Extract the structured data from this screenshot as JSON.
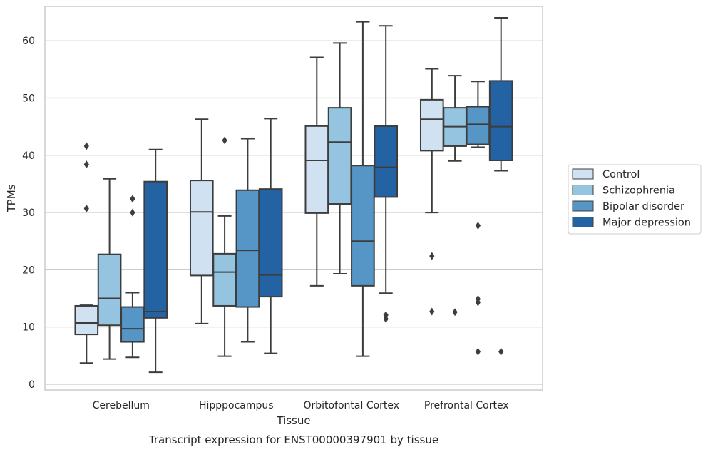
{
  "chart_data": {
    "type": "box",
    "xlabel": "Tissue",
    "ylabel": "TPMs",
    "caption": "Transcript expression for ENST00000397901 by tissue",
    "ylim": [
      -1,
      66
    ],
    "yticks": [
      0,
      10,
      20,
      30,
      40,
      50,
      60
    ],
    "grid": true,
    "legend_position": "right",
    "categories": [
      "Cerebellum",
      "Hipppocampus",
      "Orbitofontal Cortex",
      "Prefrontal Cortex"
    ],
    "series": [
      {
        "name": "Control",
        "color": "#d0e1f2",
        "boxes": [
          {
            "whislo": 3.7,
            "q1": 8.7,
            "med": 10.7,
            "q3": 13.7,
            "whishi": 13.8,
            "fliers": [
              30.7,
              38.4,
              41.6
            ]
          },
          {
            "whislo": 10.6,
            "q1": 19.0,
            "med": 30.1,
            "q3": 35.6,
            "whishi": 46.3,
            "fliers": []
          },
          {
            "whislo": 17.2,
            "q1": 29.9,
            "med": 39.1,
            "q3": 45.1,
            "whishi": 57.1,
            "fliers": []
          },
          {
            "whislo": 30.0,
            "q1": 40.8,
            "med": 46.3,
            "q3": 49.7,
            "whishi": 55.1,
            "fliers": [
              12.7,
              22.4
            ]
          }
        ]
      },
      {
        "name": "Schizophrenia",
        "color": "#94c4df",
        "boxes": [
          {
            "whislo": 4.4,
            "q1": 10.3,
            "med": 15.0,
            "q3": 22.7,
            "whishi": 35.9,
            "fliers": []
          },
          {
            "whislo": 4.9,
            "q1": 13.7,
            "med": 19.6,
            "q3": 22.8,
            "whishi": 29.4,
            "fliers": [
              42.6
            ]
          },
          {
            "whislo": 19.3,
            "q1": 31.5,
            "med": 42.3,
            "q3": 48.3,
            "whishi": 59.6,
            "fliers": []
          },
          {
            "whislo": 39.0,
            "q1": 41.6,
            "med": 45.0,
            "q3": 48.3,
            "whishi": 53.9,
            "fliers": [
              12.6
            ]
          }
        ]
      },
      {
        "name": "Bipolar disorder",
        "color": "#5596c6",
        "boxes": [
          {
            "whislo": 4.7,
            "q1": 7.4,
            "med": 9.7,
            "q3": 13.5,
            "whishi": 16.0,
            "fliers": [
              30.0,
              32.4
            ]
          },
          {
            "whislo": 7.4,
            "q1": 13.5,
            "med": 23.4,
            "q3": 33.9,
            "whishi": 42.9,
            "fliers": []
          },
          {
            "whislo": 4.9,
            "q1": 17.2,
            "med": 25.0,
            "q3": 38.2,
            "whishi": 63.3,
            "fliers": []
          },
          {
            "whislo": 41.4,
            "q1": 41.9,
            "med": 45.4,
            "q3": 48.5,
            "whishi": 52.9,
            "fliers": [
              5.7,
              14.3,
              14.9,
              27.7
            ]
          }
        ]
      },
      {
        "name": "Major depression",
        "color": "#2362a3",
        "boxes": [
          {
            "whislo": 2.1,
            "q1": 11.6,
            "med": 12.7,
            "q3": 35.4,
            "whishi": 41.0,
            "fliers": []
          },
          {
            "whislo": 5.4,
            "q1": 15.3,
            "med": 19.1,
            "q3": 34.1,
            "whishi": 46.4,
            "fliers": []
          },
          {
            "whislo": 15.9,
            "q1": 32.7,
            "med": 37.9,
            "q3": 45.1,
            "whishi": 62.6,
            "fliers": [
              11.4,
              12.1
            ]
          },
          {
            "whislo": 37.3,
            "q1": 39.1,
            "med": 45.0,
            "q3": 53.0,
            "whishi": 64.0,
            "fliers": [
              5.7
            ]
          }
        ]
      }
    ]
  }
}
